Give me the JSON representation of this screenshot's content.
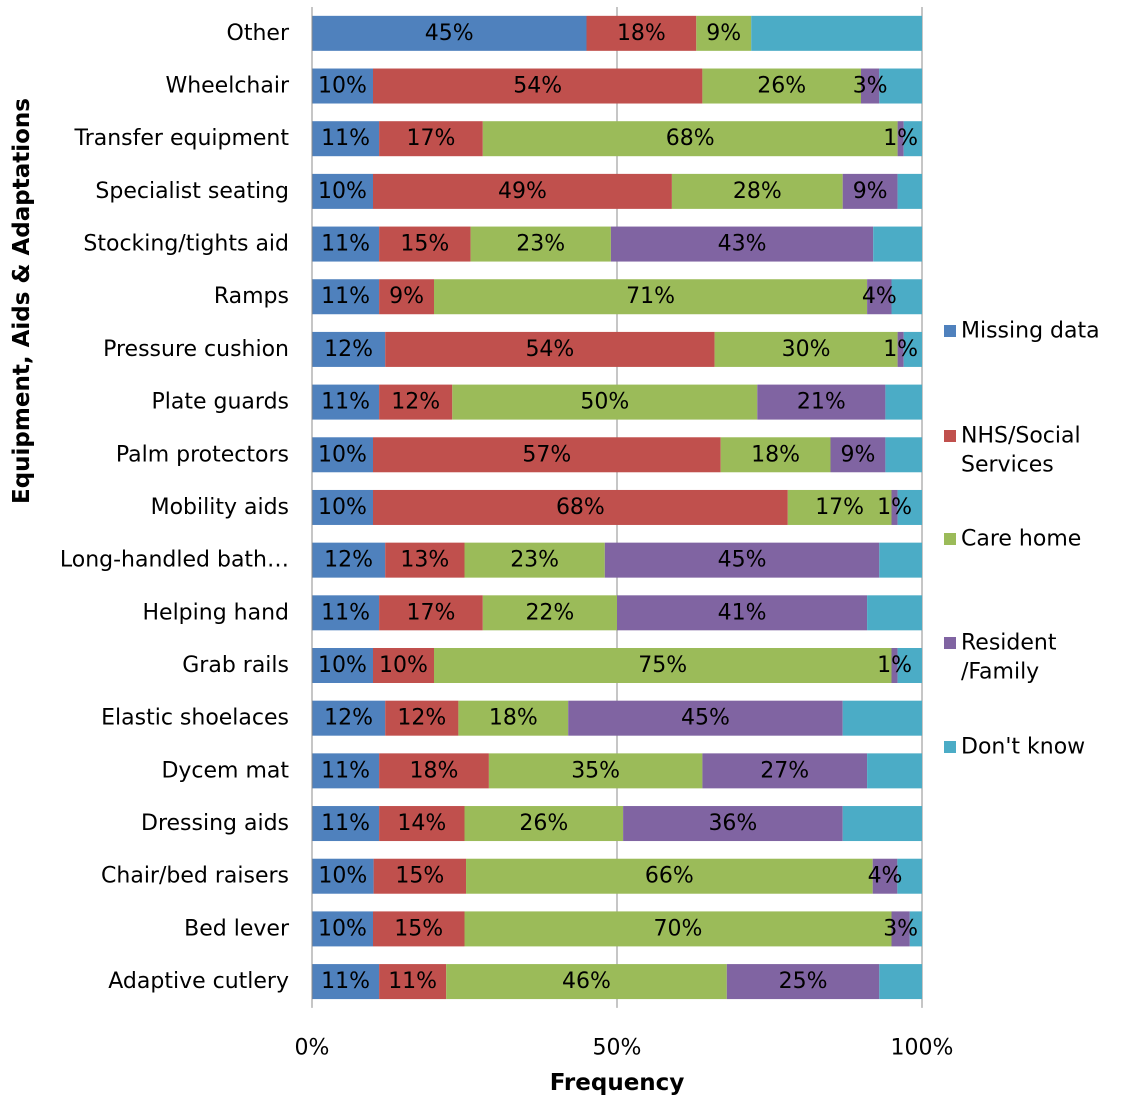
{
  "chart_data": {
    "type": "bar",
    "orientation": "horizontal",
    "stacked": "percent",
    "title": "",
    "xlabel": "Frequency",
    "ylabel": "Equipment, Aids & Adaptations",
    "xlim": [
      0,
      100
    ],
    "x_ticks": [
      "0%",
      "50%",
      "100%"
    ],
    "grid": "vertical major gridlines",
    "legend_position": "right",
    "categories": [
      "Other",
      "Wheelchair",
      "Transfer equipment",
      "Specialist seating",
      "Stocking/tights aid",
      "Ramps",
      "Pressure cushion",
      "Plate guards",
      "Palm protectors",
      "Mobility aids",
      "Long-handled bath…",
      "Helping hand",
      "Grab rails",
      "Elastic shoelaces",
      "Dycem mat",
      "Dressing aids",
      "Chair/bed raisers",
      "Bed lever",
      "Adaptive cutlery"
    ],
    "series": [
      {
        "name": "Missing data",
        "color": "#4f81bd",
        "values": [
          45,
          10,
          11,
          10,
          11,
          11,
          12,
          11,
          10,
          10,
          12,
          11,
          10,
          12,
          11,
          11,
          10,
          10,
          11
        ],
        "labels": [
          "45%",
          "10%",
          "11%",
          "10%",
          "11%",
          "11%",
          "12%",
          "11%",
          "10%",
          "10%",
          "12%",
          "11%",
          "10%",
          "12%",
          "11%",
          "11%",
          "10%",
          "10%",
          "11%"
        ]
      },
      {
        "name": "NHS/Social Services",
        "legend_lines": [
          "NHS/Social",
          "Services"
        ],
        "color": "#c0504d",
        "values": [
          18,
          54,
          17,
          49,
          15,
          9,
          54,
          12,
          57,
          68,
          13,
          17,
          10,
          12,
          18,
          14,
          15,
          15,
          11
        ],
        "labels": [
          "18%",
          "54%",
          "17%",
          "49%",
          "15%",
          "9%",
          "54%",
          "12%",
          "57%",
          "68%",
          "13%",
          "17%",
          "10%",
          "12%",
          "18%",
          "14%",
          "15%",
          "15%",
          "11%"
        ]
      },
      {
        "name": "Care home",
        "color": "#9bbb59",
        "values": [
          9,
          26,
          68,
          28,
          23,
          71,
          30,
          50,
          18,
          17,
          23,
          22,
          75,
          18,
          35,
          26,
          66,
          70,
          46
        ],
        "labels": [
          "9%",
          "26%",
          "68%",
          "28%",
          "23%",
          "71%",
          "30%",
          "50%",
          "18%",
          "17%",
          "23%",
          "22%",
          "75%",
          "18%",
          "35%",
          "26%",
          "66%",
          "70%",
          "46%"
        ]
      },
      {
        "name": "Resident /Family",
        "legend_lines": [
          "Resident",
          "/Family"
        ],
        "color": "#8064a2",
        "values": [
          0,
          3,
          1,
          9,
          43,
          4,
          1,
          21,
          9,
          1,
          45,
          41,
          1,
          45,
          27,
          36,
          4,
          3,
          25
        ],
        "labels": [
          "",
          "3%",
          "1%",
          "9%",
          "43%",
          "4%",
          "1%",
          "21%",
          "9%",
          "1%",
          "45%",
          "41%",
          "1%",
          "45%",
          "27%",
          "36%",
          "4%",
          "3%",
          "25%"
        ]
      },
      {
        "name": "Don't know",
        "color": "#4bacc6",
        "values": [
          28,
          7,
          3,
          4,
          8,
          5,
          3,
          6,
          6,
          4,
          7,
          9,
          4,
          13,
          9,
          13,
          4,
          2,
          7
        ],
        "labels": [
          "",
          "",
          "",
          "",
          "",
          "",
          "",
          "",
          "",
          "",
          "",
          "",
          "",
          "",
          "",
          "",
          "",
          "",
          ""
        ]
      }
    ]
  }
}
